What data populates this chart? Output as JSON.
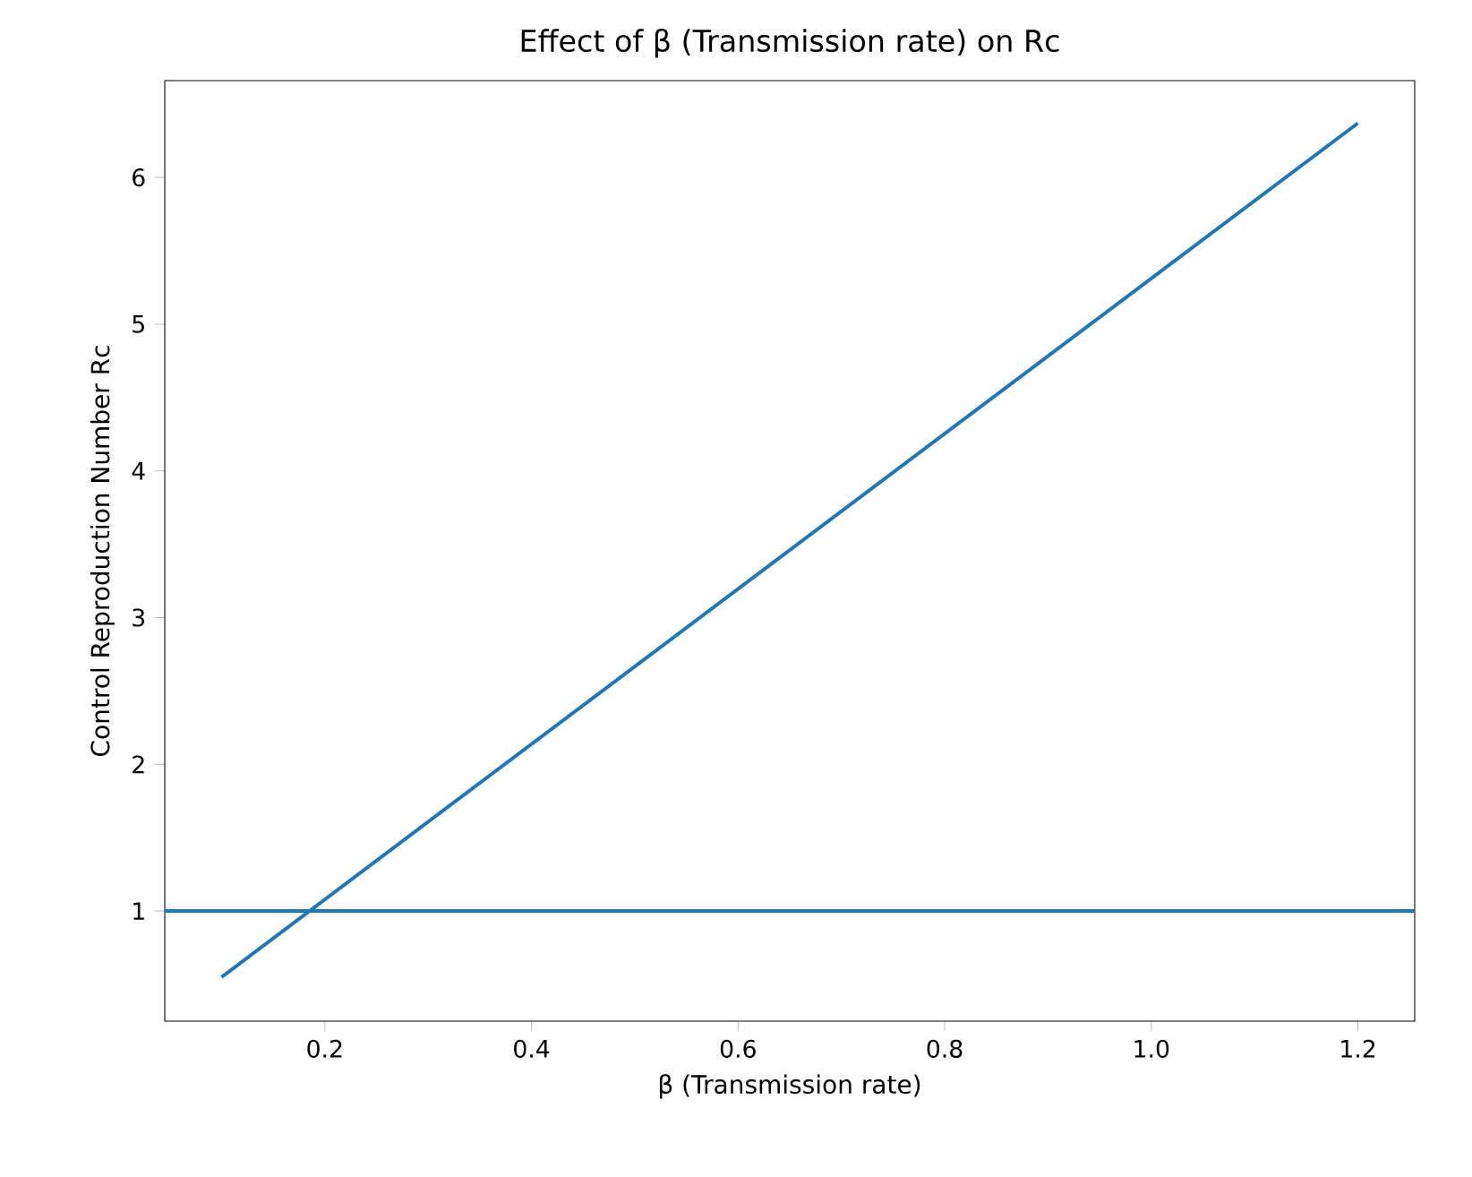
{
  "chart_data": {
    "type": "line",
    "title": "Effect of β (Transmission rate) on Rc",
    "xlabel": "β (Transmission rate)",
    "ylabel": "Control Reproduction Number Rc",
    "x": [
      0.1,
      1.2
    ],
    "series": [
      {
        "color": "#1f77b4",
        "values": [
          0.55,
          6.37
        ]
      }
    ],
    "xlim": [
      0.045,
      1.255
    ],
    "ylim": [
      0.25,
      6.66
    ],
    "xticks": [
      0.2,
      0.4,
      0.6,
      0.8,
      {
        "value": 1,
        "label": "1.0"
      },
      1.2
    ],
    "yticks": [
      1,
      2,
      3,
      4,
      5,
      6
    ],
    "ref_lines": [
      {
        "axis": "y",
        "value": 1,
        "color": "#1f77b4"
      }
    ],
    "grid": false
  }
}
